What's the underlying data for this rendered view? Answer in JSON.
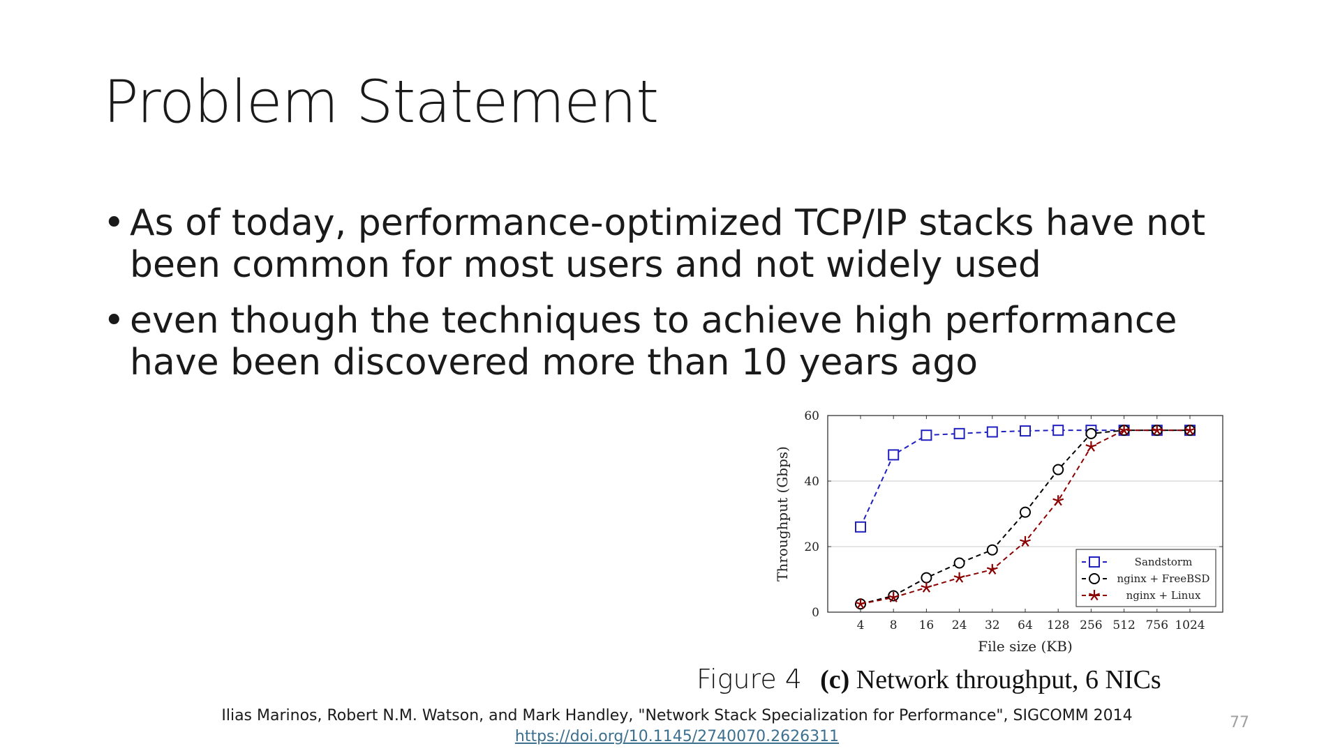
{
  "slide": {
    "title": "Problem Statement",
    "bullets": [
      {
        "text": "As of today, performance-optimized TCP/IP stacks have not been common for most users and not widely used"
      },
      {
        "text": "even though the techniques to achieve high performance have been discovered more than 10 years ago"
      }
    ],
    "bullet_glyph": "•",
    "figure_caption": {
      "number": "Figure 4",
      "label": "(c)",
      "text": "Network throughput, 6 NICs"
    },
    "citation": "Ilias Marinos, Robert N.M. Watson, and Mark Handley, \"Network Stack Specialization for Performance\", SIGCOMM 2014",
    "doi": "https://doi.org/10.1145/2740070.2626311",
    "page_number": "77"
  },
  "chart_data": {
    "type": "line",
    "title": "",
    "xlabel": "File size (KB)",
    "ylabel": "Throughput (Gbps)",
    "categories": [
      "4",
      "8",
      "16",
      "24",
      "32",
      "64",
      "128",
      "256",
      "512",
      "756",
      "1024"
    ],
    "ylim": [
      0,
      60
    ],
    "yticks": [
      0,
      20,
      40,
      60
    ],
    "grid": "horizontal",
    "legend_position": "bottom-right",
    "series": [
      {
        "name": "Sandstorm",
        "marker": "square",
        "color": "#1f1fbf",
        "values": [
          26,
          48,
          54,
          54.5,
          55,
          55.3,
          55.5,
          55.5,
          55.5,
          55.5,
          55.5
        ]
      },
      {
        "name": "nginx + FreeBSD",
        "marker": "circle",
        "color": "#000000",
        "values": [
          2.5,
          5,
          10.5,
          15,
          19,
          30.5,
          43.5,
          54.5,
          55.5,
          55.5,
          55.5
        ]
      },
      {
        "name": "nginx + Linux",
        "marker": "star",
        "color": "#8b0000",
        "values": [
          2.5,
          4.5,
          7.5,
          10.5,
          13,
          21.5,
          34,
          50.5,
          55.5,
          55.5,
          55.5
        ]
      }
    ]
  }
}
